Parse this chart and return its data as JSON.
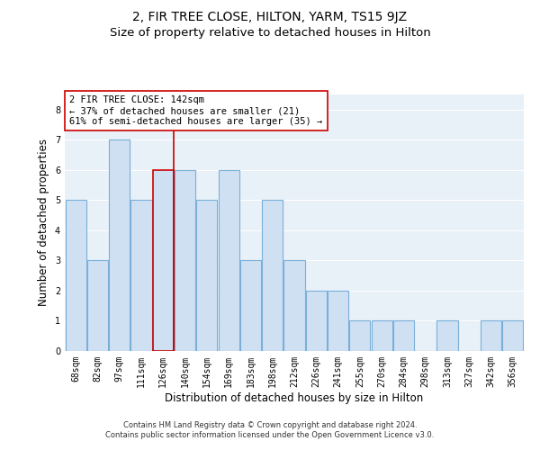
{
  "title": "2, FIR TREE CLOSE, HILTON, YARM, TS15 9JZ",
  "subtitle": "Size of property relative to detached houses in Hilton",
  "xlabel": "Distribution of detached houses by size in Hilton",
  "ylabel": "Number of detached properties",
  "categories": [
    "68sqm",
    "82sqm",
    "97sqm",
    "111sqm",
    "126sqm",
    "140sqm",
    "154sqm",
    "169sqm",
    "183sqm",
    "198sqm",
    "212sqm",
    "226sqm",
    "241sqm",
    "255sqm",
    "270sqm",
    "284sqm",
    "298sqm",
    "313sqm",
    "327sqm",
    "342sqm",
    "356sqm"
  ],
  "values": [
    5,
    3,
    7,
    5,
    6,
    6,
    5,
    6,
    3,
    5,
    3,
    2,
    2,
    1,
    1,
    1,
    0,
    1,
    0,
    1,
    1
  ],
  "highlight_index": 4,
  "bar_color": "#cfe0f3",
  "bar_edgecolor": "#7ab0d8",
  "highlight_bar_edgecolor": "#cc0000",
  "vline_x": 4.5,
  "vline_color": "#cc0000",
  "annotation_text": "2 FIR TREE CLOSE: 142sqm\n← 37% of detached houses are smaller (21)\n61% of semi-detached houses are larger (35) →",
  "annotation_box_color": "#ffffff",
  "annotation_box_edgecolor": "#cc0000",
  "ylim": [
    0,
    8.5
  ],
  "yticks": [
    0,
    1,
    2,
    3,
    4,
    5,
    6,
    7,
    8
  ],
  "footer": "Contains HM Land Registry data © Crown copyright and database right 2024.\nContains public sector information licensed under the Open Government Licence v3.0.",
  "bg_color": "#e8f0f8",
  "grid_color": "#ffffff",
  "title_fontsize": 10,
  "subtitle_fontsize": 9.5,
  "tick_fontsize": 7,
  "ylabel_fontsize": 8.5,
  "xlabel_fontsize": 8.5,
  "annotation_fontsize": 7.5,
  "footer_fontsize": 6
}
